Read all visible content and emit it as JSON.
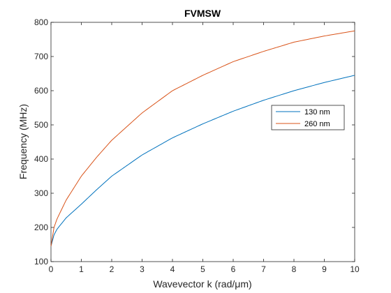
{
  "chart_data": {
    "type": "line",
    "title": "FVMSW",
    "xlabel": "Wavevector k (rad/μm)",
    "ylabel": "Frequency (MHz)",
    "xlim": [
      0,
      10
    ],
    "ylim": [
      100,
      800
    ],
    "xticks": [
      "0",
      "1",
      "2",
      "3",
      "4",
      "5",
      "6",
      "7",
      "8",
      "9",
      "10"
    ],
    "yticks": [
      "100",
      "200",
      "300",
      "400",
      "500",
      "600",
      "700",
      "800"
    ],
    "grid": false,
    "legend_position": "right",
    "series": [
      {
        "name": "130 nm",
        "color": "#0072BD",
        "x": [
          0,
          0.1,
          0.2,
          0.5,
          1,
          1.5,
          2,
          3,
          4,
          5,
          6,
          7,
          8,
          9,
          10
        ],
        "y": [
          145,
          178,
          195,
          228,
          268,
          310,
          350,
          412,
          462,
          503,
          540,
          572,
          600,
          624,
          645
        ]
      },
      {
        "name": "260 nm",
        "color": "#D95319",
        "x": [
          0,
          0.1,
          0.2,
          0.5,
          1,
          1.5,
          2,
          3,
          4,
          5,
          6,
          7,
          8,
          9,
          10
        ],
        "y": [
          145,
          200,
          225,
          280,
          350,
          405,
          455,
          535,
          600,
          645,
          685,
          715,
          742,
          760,
          775
        ]
      }
    ]
  }
}
